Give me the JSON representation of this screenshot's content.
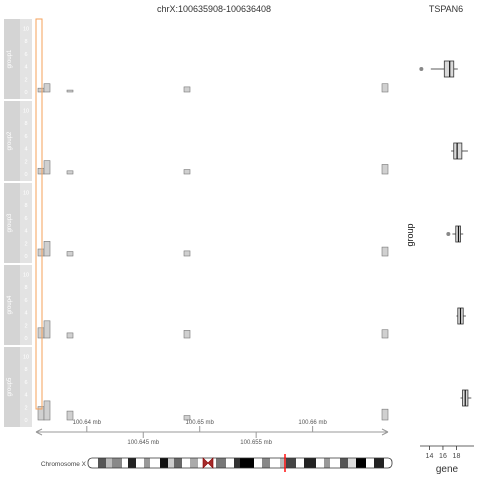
{
  "chart_data": [
    {
      "type": "bar",
      "title": "chrX:100635908-100636408",
      "panels": [
        {
          "name": "group1",
          "ticks": [
            0,
            2,
            4,
            6,
            8,
            10
          ],
          "bars": [
            0.6,
            1.3,
            0.3,
            0.8,
            1.3
          ]
        },
        {
          "name": "group2",
          "ticks": [
            0,
            2,
            4,
            6,
            8,
            10
          ],
          "bars": [
            0.9,
            2.1,
            0.5,
            0.7,
            1.5
          ]
        },
        {
          "name": "group3",
          "ticks": [
            0,
            2,
            4,
            6,
            8,
            10
          ],
          "bars": [
            1.1,
            2.3,
            0.7,
            0.8,
            1.4
          ]
        },
        {
          "name": "group4",
          "ticks": [
            0,
            2,
            4,
            6,
            8,
            10
          ],
          "bars": [
            1.6,
            2.7,
            0.8,
            1.2,
            1.3
          ]
        },
        {
          "name": "group5",
          "ticks": [
            0,
            2,
            4,
            6,
            8,
            10
          ],
          "bars": [
            2.1,
            3.0,
            1.4,
            0.7,
            1.7
          ]
        }
      ],
      "ylim": [
        0,
        11
      ],
      "x_axis": {
        "unit": "mb",
        "range": [
          100.6355,
          100.6665
        ],
        "top_ticks": [
          {
            "value": 100.64,
            "label": "100.64 mb"
          },
          {
            "value": 100.65,
            "label": "100.65 mb"
          },
          {
            "value": 100.66,
            "label": "100.66 mb"
          }
        ],
        "bottom_ticks": [
          {
            "value": 100.645,
            "label": "100.645 mb"
          },
          {
            "value": 100.655,
            "label": "100.655 mb"
          }
        ]
      },
      "ideogram": {
        "label": "Chromosome X"
      }
    },
    {
      "type": "boxplot",
      "title": "TSPAN6",
      "xlabel": "gene",
      "ylabel": "group",
      "ticks": [
        14,
        16,
        18
      ],
      "xlim": [
        12.6,
        20.6
      ],
      "boxes": [
        {
          "group": "group1",
          "whisker_low": 14.2,
          "q1": 16.2,
          "median": 17.0,
          "q3": 17.6,
          "whisker_high": 18.2,
          "outliers": [
            12.8
          ]
        },
        {
          "group": "group2",
          "whisker_low": 17.2,
          "q1": 17.6,
          "median": 18.1,
          "q3": 18.8,
          "whisker_high": 19.7,
          "outliers": []
        },
        {
          "group": "group3",
          "whisker_low": 17.4,
          "q1": 17.9,
          "median": 18.3,
          "q3": 18.6,
          "whisker_high": 19.0,
          "outliers": [
            16.8
          ]
        },
        {
          "group": "group4",
          "whisker_low": 18.0,
          "q1": 18.2,
          "median": 18.6,
          "q3": 19.0,
          "whisker_high": 19.4,
          "outliers": []
        },
        {
          "group": "group5",
          "whisker_low": 18.6,
          "q1": 18.9,
          "median": 19.3,
          "q3": 19.7,
          "whisker_high": 20.2,
          "outliers": []
        }
      ]
    }
  ]
}
